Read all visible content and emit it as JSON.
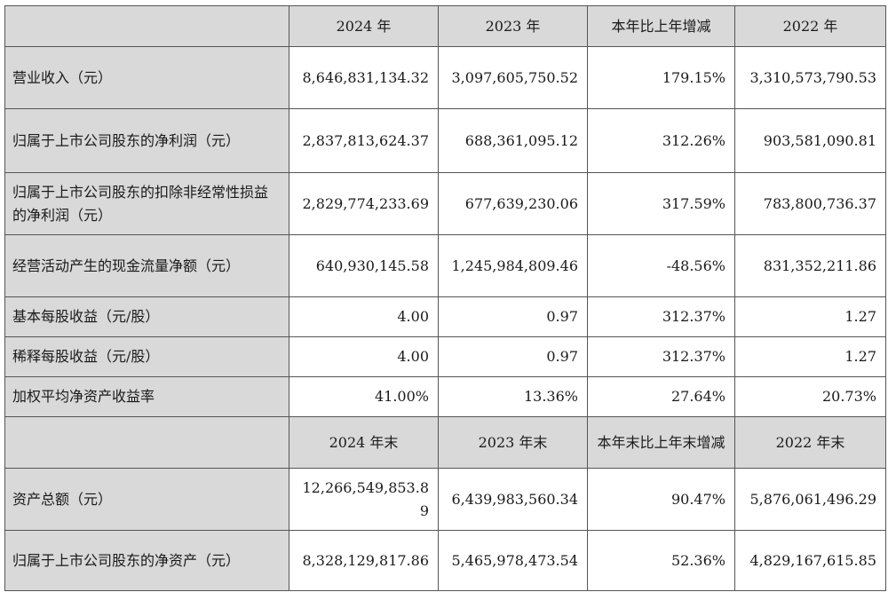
{
  "header1": [
    "",
    "2024 年",
    "2023 年",
    "本年比上年增减",
    "2022 年"
  ],
  "rows1": [
    {
      "label": "营业收入（元）",
      "v2024": "8,646,831,134.32",
      "v2023": "3,097,605,750.52",
      "change": "179.15%",
      "v2022": "3,310,573,790.53"
    },
    {
      "label": "归属于上市公司股东的净利润（元）",
      "v2024": "2,837,813,624.37",
      "v2023": "688,361,095.12",
      "change": "312.26%",
      "v2022": "903,581,090.81"
    },
    {
      "label": "归属于上市公司股东的扣除非经常性损益的净利润（元）",
      "v2024": "2,829,774,233.69",
      "v2023": "677,639,230.06",
      "change": "317.59%",
      "v2022": "783,800,736.37"
    },
    {
      "label": "经营活动产生的现金流量净额（元）",
      "v2024": "640,930,145.58",
      "v2023": "1,245,984,809.46",
      "change": "-48.56%",
      "v2022": "831,352,211.86"
    },
    {
      "label": "基本每股收益（元/股）",
      "v2024": "4.00",
      "v2023": "0.97",
      "change": "312.37%",
      "v2022": "1.27"
    },
    {
      "label": "稀释每股收益（元/股）",
      "v2024": "4.00",
      "v2023": "0.97",
      "change": "312.37%",
      "v2022": "1.27"
    },
    {
      "label": "加权平均净资产收益率",
      "v2024": "41.00%",
      "v2023": "13.36%",
      "change": "27.64%",
      "v2022": "20.73%"
    }
  ],
  "header2": [
    "",
    "2024 年末",
    "2023 年末",
    "本年末比上年末增减",
    "2022 年末"
  ],
  "rows2": [
    {
      "label": "资产总额（元）",
      "v2024": "12,266,549,853.89",
      "v2023": "6,439,983,560.34",
      "change": "90.47%",
      "v2022": "5,876,061,496.29"
    },
    {
      "label": "归属于上市公司股东的净资产（元）",
      "v2024": "8,328,129,817.86",
      "v2023": "5,465,978,473.54",
      "change": "52.36%",
      "v2022": "4,829,167,615.85"
    }
  ]
}
